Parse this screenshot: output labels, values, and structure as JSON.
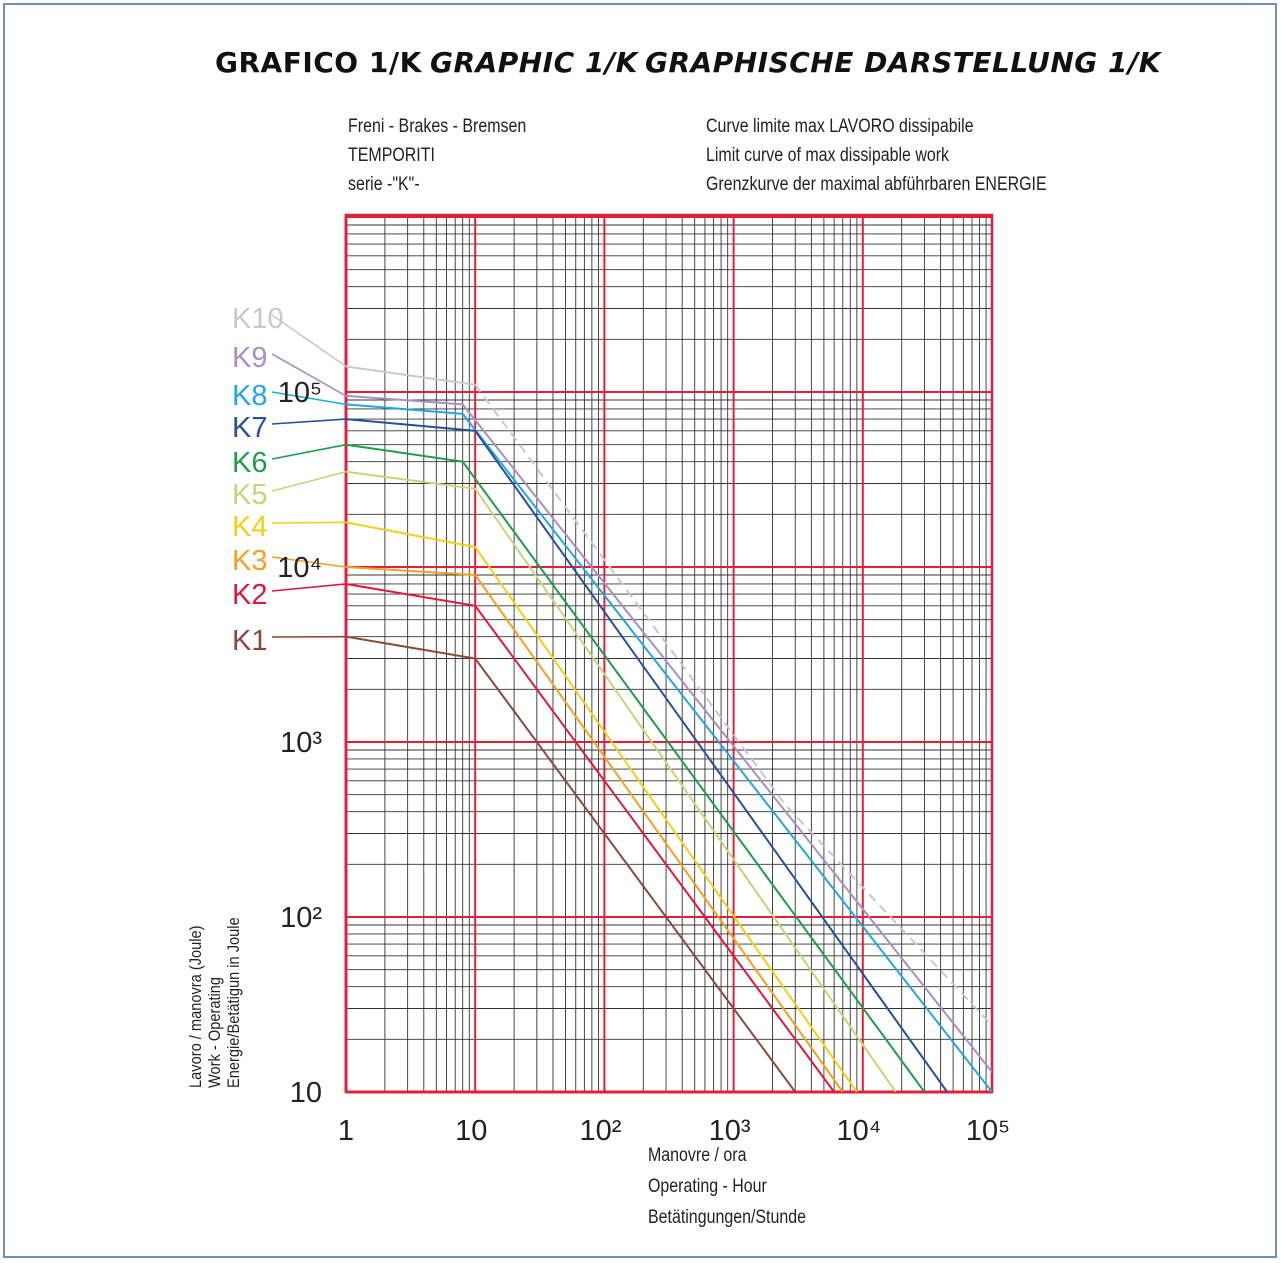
{
  "titles": [
    "GRAFICO 1/K",
    "GRAPHIC 1/K",
    "GRAPHISCHE DARSTELLUNG 1/K"
  ],
  "notes": {
    "left": [
      "Freni - Brakes - Bremsen",
      "TEMPORITI",
      "serie -\"K\"-"
    ],
    "right": [
      "Curve limite max LAVORO dissipabile",
      "Limit curve of max dissipable work",
      "Grenzkurve der maximal abführbaren ENERGIE"
    ]
  },
  "chart_data": {
    "type": "line",
    "x_scale": "log",
    "y_scale": "log",
    "xlim": [
      1,
      100000
    ],
    "ylim": [
      10,
      1000000
    ],
    "grid": true,
    "x_ticks": [
      {
        "value": 1,
        "label": "1"
      },
      {
        "value": 10,
        "label": "10"
      },
      {
        "value": 100,
        "label": "10²"
      },
      {
        "value": 1000,
        "label": "10³"
      },
      {
        "value": 10000,
        "label": "10⁴"
      },
      {
        "value": 100000,
        "label": "10⁵"
      }
    ],
    "y_ticks": [
      {
        "value": 10,
        "label": "10"
      },
      {
        "value": 100,
        "label": "10²"
      },
      {
        "value": 1000,
        "label": "10³"
      },
      {
        "value": 10000,
        "label": "10⁴"
      },
      {
        "value": 100000,
        "label": "10⁵"
      }
    ],
    "xlabel": [
      "Manovre / ora",
      "Operating - Hour",
      "Betätingungen/Stunde"
    ],
    "ylabel": [
      "Lavoro / manovra (Joule)",
      "Work - Operating",
      "Energie/Betätigun in Joule"
    ],
    "series": [
      {
        "name": "K10",
        "color": "#c8c8c8",
        "dashed_after": 10,
        "points": [
          [
            1,
            140000
          ],
          [
            10,
            110000
          ],
          [
            2500,
            440
          ],
          [
            100000,
            24
          ]
        ]
      },
      {
        "name": "K9",
        "color": "#a98fc4",
        "points": [
          [
            1,
            95000
          ],
          [
            8,
            85000
          ],
          [
            100000,
            13
          ]
        ]
      },
      {
        "name": "K8",
        "color": "#22a8e0",
        "points": [
          [
            1,
            85000
          ],
          [
            8,
            75000
          ],
          [
            100000,
            10
          ]
        ]
      },
      {
        "name": "K7",
        "color": "#27509a",
        "points": [
          [
            1,
            70000
          ],
          [
            10,
            60000
          ],
          [
            45000,
            10
          ]
        ]
      },
      {
        "name": "K6",
        "color": "#1e9e4a",
        "points": [
          [
            1,
            50000
          ],
          [
            8,
            40000
          ],
          [
            30000,
            10
          ]
        ]
      },
      {
        "name": "K5",
        "color": "#c3d678",
        "points": [
          [
            1,
            35000
          ],
          [
            10,
            28000
          ],
          [
            18000,
            10
          ]
        ]
      },
      {
        "name": "K4",
        "color": "#f2d016",
        "points": [
          [
            1,
            18000
          ],
          [
            10,
            13000
          ],
          [
            9000,
            10
          ]
        ]
      },
      {
        "name": "K3",
        "color": "#f5a01e",
        "points": [
          [
            1,
            10000
          ],
          [
            10,
            9000
          ],
          [
            7000,
            10
          ]
        ]
      },
      {
        "name": "K2",
        "color": "#e0183c",
        "points": [
          [
            1,
            8000
          ],
          [
            10,
            6000
          ],
          [
            6000,
            10
          ]
        ]
      },
      {
        "name": "K1",
        "color": "#8a4a3a",
        "points": [
          [
            1,
            4000
          ],
          [
            10,
            3000
          ],
          [
            3000,
            10
          ]
        ]
      }
    ]
  }
}
